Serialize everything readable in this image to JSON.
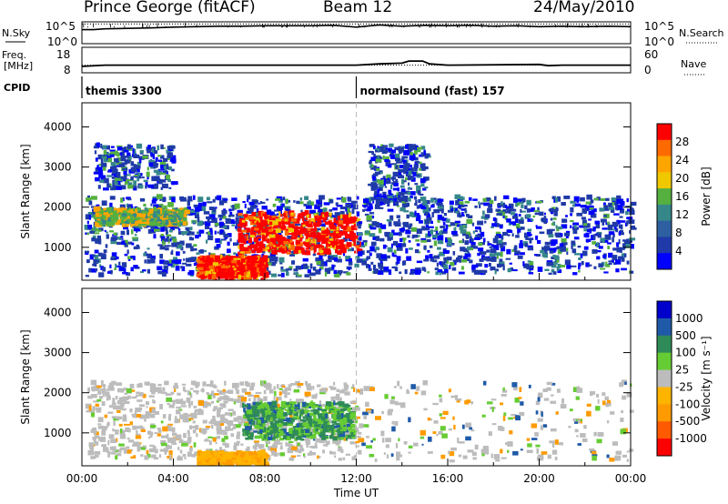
{
  "header": {
    "station": "Prince George (fitACF)",
    "beam": "Beam 12",
    "date": "24/May/2010"
  },
  "chart_data": [
    {
      "type": "line",
      "panel": "counts",
      "left_labels": [
        "N.Sky"
      ],
      "right_labels": [
        "N.Search"
      ],
      "left_ticks": [
        "10^5",
        "10^0"
      ],
      "right_ticks": [
        "10^5",
        "10^0"
      ],
      "series": [
        {
          "name": "N.Sky",
          "x": [
            0,
            0.5,
            1,
            2,
            3,
            4,
            5,
            6,
            7,
            8,
            9,
            10,
            11,
            12,
            13,
            14,
            15,
            16,
            17,
            18,
            19,
            20,
            21,
            22,
            23,
            24
          ],
          "values": [
            3.2,
            3.2,
            3.4,
            3.5,
            3.6,
            3.8,
            3.9,
            4.0,
            4.0,
            4.1,
            4.1,
            4.1,
            4.2,
            3.8,
            4.3,
            4.0,
            4.2,
            4.1,
            4.2,
            4.0,
            4.1,
            3.9,
            4.0,
            3.9,
            4.0,
            3.9
          ]
        },
        {
          "name": "N.Search",
          "x": [
            0,
            24
          ],
          "values": [
            4.5,
            4.5
          ]
        }
      ]
    },
    {
      "type": "line",
      "panel": "frequency",
      "left_labels": [
        "Freq.",
        "[MHz]"
      ],
      "right_labels": [
        "Nave"
      ],
      "left_ticks": [
        "18",
        "8"
      ],
      "right_ticks": [
        "60",
        "0"
      ],
      "series": [
        {
          "name": "Freq.",
          "x": [
            0,
            1,
            4,
            12,
            13,
            14,
            14.3,
            14.9,
            15.2,
            16,
            20,
            20.4,
            21,
            24
          ],
          "values": [
            10.5,
            11,
            11,
            11,
            11.5,
            11.8,
            12.6,
            12.6,
            11.5,
            11,
            11.3,
            10.8,
            11,
            11
          ]
        },
        {
          "name": "Nave",
          "x": [
            0,
            24
          ],
          "values": [
            18,
            18
          ]
        }
      ]
    },
    {
      "type": "table",
      "panel": "cpid",
      "label": "CPID",
      "entries": [
        {
          "start": 0,
          "text": "themis 3300"
        },
        {
          "start": 12,
          "text": "normalsound (fast) 157"
        }
      ]
    },
    {
      "type": "heatmap",
      "panel": "power",
      "ylabel": "Slant Range [km]",
      "yticks": [
        1000,
        2000,
        3000,
        4000
      ],
      "ylim": [
        180,
        4600
      ],
      "xlim": [
        0,
        24
      ],
      "colorbar": {
        "label": "Power [dB]",
        "ticks": [
          "28",
          "24",
          "20",
          "16",
          "12",
          "8",
          "4"
        ],
        "colors": [
          "#0000ff",
          "#1f3aa8",
          "#2e5fa0",
          "#35878a",
          "#55b040",
          "#f0c800",
          "#ffa500",
          "#ff6a00",
          "#ff0000"
        ]
      },
      "regions": [
        {
          "t0": 0.1,
          "t1": 12,
          "r0": 250,
          "r1": 2200,
          "level": "weak"
        },
        {
          "t0": 0.5,
          "t1": 4.5,
          "r0": 1500,
          "r1": 1900,
          "level": "moderate"
        },
        {
          "t0": 5,
          "t1": 8,
          "r0": 180,
          "r1": 700,
          "level": "strong"
        },
        {
          "t0": 6.8,
          "t1": 12,
          "r0": 800,
          "r1": 1800,
          "level": "strong"
        },
        {
          "t0": 12,
          "t1": 24,
          "r0": 300,
          "r1": 2200,
          "level": "weak"
        },
        {
          "t0": 0.5,
          "t1": 4,
          "r0": 2400,
          "r1": 3500,
          "level": "sparse"
        },
        {
          "t0": 12.5,
          "t1": 15,
          "r0": 2000,
          "r1": 3500,
          "level": "sparse"
        }
      ]
    },
    {
      "type": "heatmap",
      "panel": "velocity",
      "ylabel": "Slant Range [km]",
      "xlabel": "Time UT",
      "xticks": [
        "00:00",
        "04:00",
        "08:00",
        "12:00",
        "16:00",
        "20:00",
        "00:00"
      ],
      "yticks": [
        1000,
        2000,
        3000,
        4000
      ],
      "ylim": [
        180,
        4600
      ],
      "xlim": [
        0,
        24
      ],
      "colorbar": {
        "label": "Velocity [m s⁻¹]",
        "ticks": [
          "1000",
          "500",
          "100",
          "25",
          "-25",
          "-100",
          "-500",
          "-1000"
        ],
        "colors": [
          "#ff0000",
          "#ff5a00",
          "#ff9b00",
          "#ffb400",
          "#bcbcbc",
          "#66cc33",
          "#2e8b57",
          "#1f5aa8",
          "#0000cc"
        ]
      },
      "regions": [
        {
          "t0": 0.1,
          "t1": 12,
          "r0": 300,
          "r1": 2200,
          "level": "ground"
        },
        {
          "t0": 7,
          "t1": 11.8,
          "r0": 800,
          "r1": 1700,
          "level": "positive"
        },
        {
          "t0": 5,
          "t1": 8,
          "r0": 180,
          "r1": 450,
          "level": "negative"
        },
        {
          "t0": 12,
          "t1": 24,
          "r0": 250,
          "r1": 2200,
          "level": "sparse"
        }
      ]
    }
  ]
}
